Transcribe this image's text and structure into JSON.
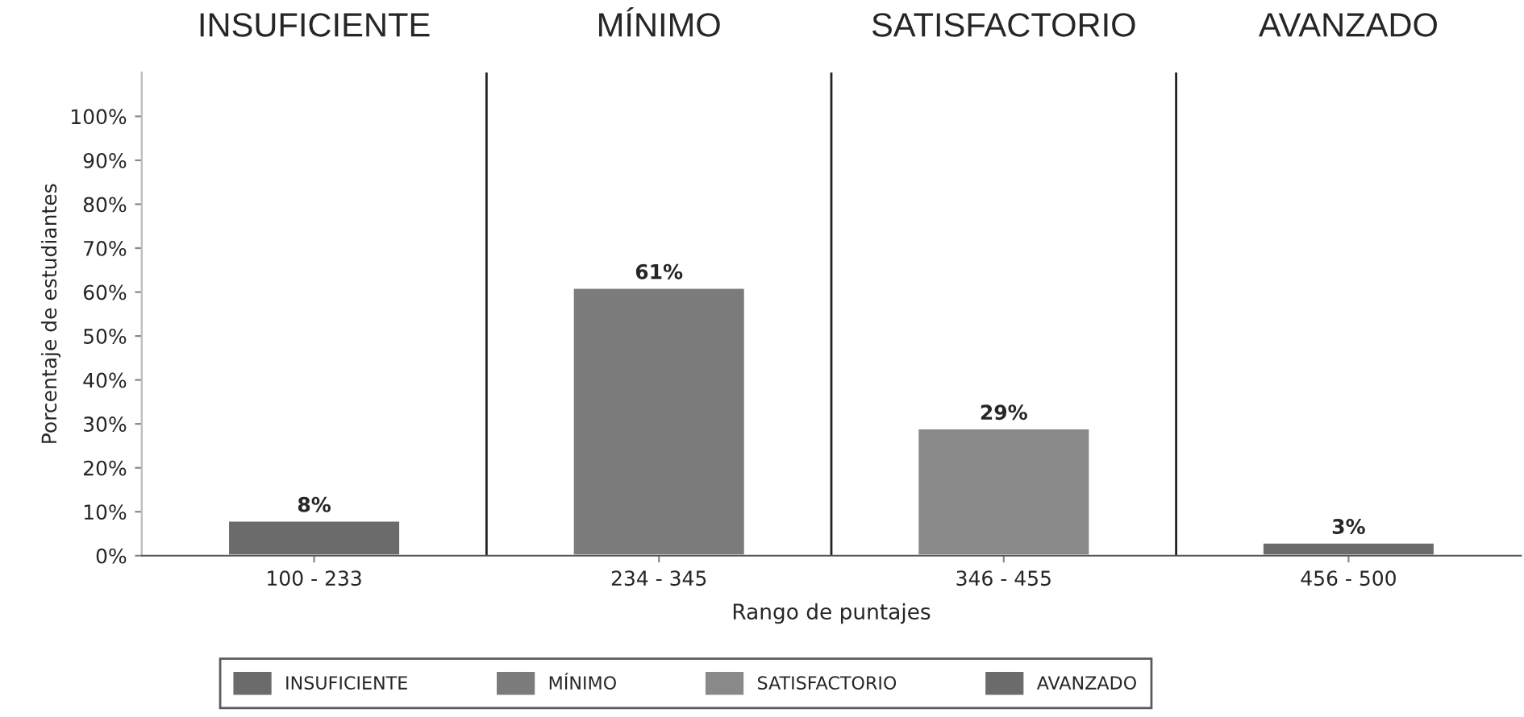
{
  "chart_data": {
    "type": "bar",
    "xlabel": "Rango de puntajes",
    "ylabel": "Porcentaje de estudiantes",
    "categories": [
      "100 - 233",
      "234 - 345",
      "346 - 455",
      "456 - 500"
    ],
    "series": [
      {
        "name": "INSUFICIENTE",
        "color": "#6b6b6b",
        "values": [
          8,
          null,
          null,
          null
        ]
      },
      {
        "name": "MÍNIMO",
        "color": "#7b7b7b",
        "values": [
          null,
          61,
          null,
          null
        ]
      },
      {
        "name": "SATISFACTORIO",
        "color": "#898989",
        "values": [
          null,
          null,
          29,
          null
        ]
      },
      {
        "name": "AVANZADO",
        "color": "#6b6b6b",
        "values": [
          null,
          null,
          null,
          3
        ]
      }
    ],
    "ylim": [
      0,
      110
    ],
    "yticks": [
      {
        "value": 0,
        "label": "0%"
      },
      {
        "value": 10,
        "label": "10%"
      },
      {
        "value": 20,
        "label": "20%"
      },
      {
        "value": 30,
        "label": "30%"
      },
      {
        "value": 40,
        "label": "40%"
      },
      {
        "value": 50,
        "label": "50%"
      },
      {
        "value": 60,
        "label": "60%"
      },
      {
        "value": 70,
        "label": "70%"
      },
      {
        "value": 80,
        "label": "80%"
      },
      {
        "value": 90,
        "label": "90%"
      },
      {
        "value": 100,
        "label": "100%"
      }
    ],
    "value_labels": [
      "8%",
      "61%",
      "29%",
      "3%"
    ],
    "grid": false,
    "legend": "bottom"
  }
}
